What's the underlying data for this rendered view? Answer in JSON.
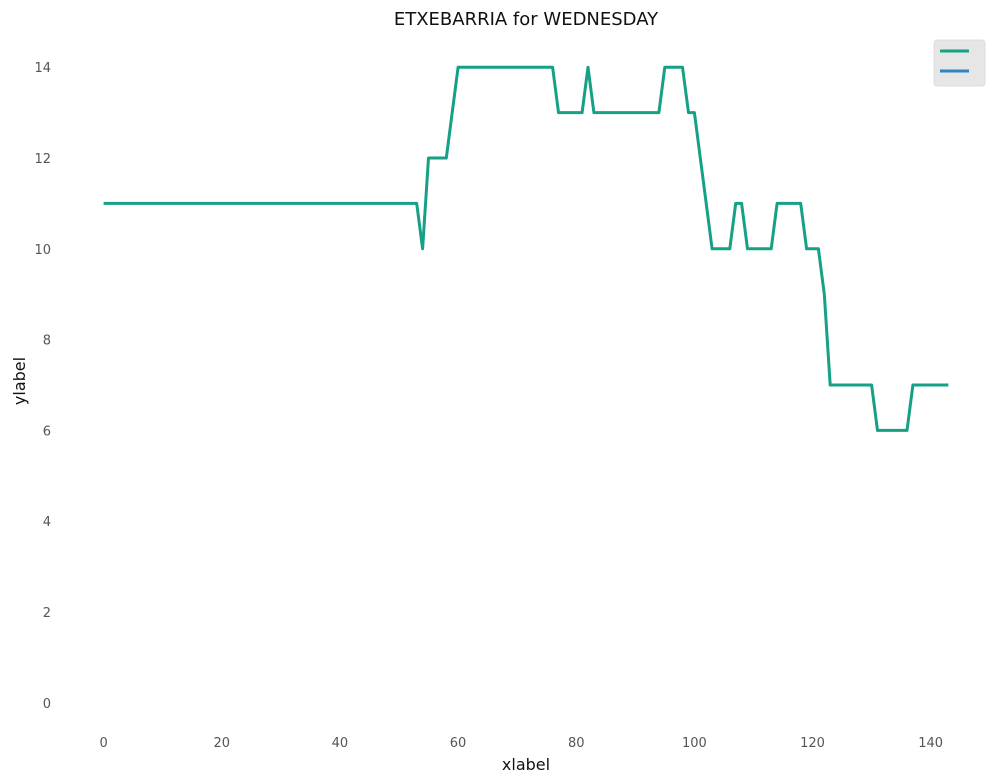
{
  "chart_data": {
    "type": "line",
    "title": "ETXEBARRIA for WEDNESDAY",
    "xlabel": "xlabel",
    "ylabel": "ylabel",
    "xlim": [
      -4,
      147
    ],
    "ylim": [
      -0.6,
      14.6
    ],
    "xticks": [
      0,
      20,
      40,
      60,
      80,
      100,
      120,
      140
    ],
    "yticks": [
      0,
      2,
      4,
      6,
      8,
      10,
      12,
      14
    ],
    "grid": false,
    "legend": {
      "position": "top-right",
      "entries": [
        "",
        ""
      ]
    },
    "series": [
      {
        "color": "#16a085",
        "points": [
          [
            0,
            11
          ],
          [
            53,
            11
          ],
          [
            54,
            10
          ],
          [
            55,
            12
          ],
          [
            58,
            12
          ],
          [
            60,
            14
          ],
          [
            76,
            14
          ],
          [
            77,
            13
          ],
          [
            81,
            13
          ],
          [
            82,
            14
          ],
          [
            83,
            13
          ],
          [
            94,
            13
          ],
          [
            95,
            14
          ],
          [
            98,
            14
          ],
          [
            99,
            13
          ],
          [
            100,
            13
          ],
          [
            103,
            10
          ],
          [
            106,
            10
          ],
          [
            107,
            11
          ],
          [
            108,
            11
          ],
          [
            109,
            10
          ],
          [
            113,
            10
          ],
          [
            114,
            11
          ],
          [
            118,
            11
          ],
          [
            119,
            10
          ],
          [
            121,
            10
          ],
          [
            122,
            9
          ],
          [
            123,
            7
          ],
          [
            130,
            7
          ],
          [
            131,
            6
          ],
          [
            136,
            6
          ],
          [
            137,
            7
          ],
          [
            143,
            7
          ]
        ]
      }
    ],
    "legend_colors": [
      "#16a085",
      "#2e86c1"
    ]
  }
}
